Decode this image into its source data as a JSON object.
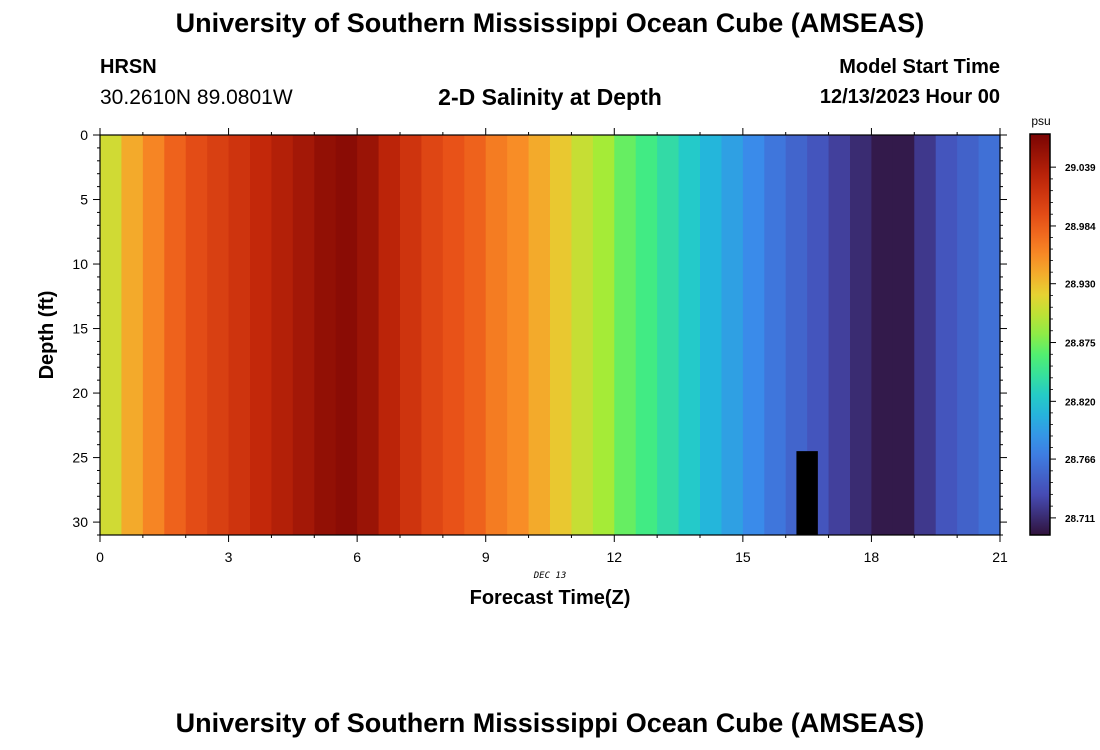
{
  "header": {
    "title": "University of Southern Mississippi Ocean Cube (AMSEAS)",
    "station": "HRSN",
    "coords": "30.2610N  89.0801W",
    "subtitle": "2-D Salinity at Depth",
    "model_start_label": "Model Start Time",
    "model_start_value": "12/13/2023 Hour 00"
  },
  "footer": {
    "title": "University of Southern Mississippi Ocean Cube (AMSEAS)"
  },
  "chart_data": {
    "type": "heatmap",
    "title": "2-D Salinity at Depth",
    "xlabel": "Forecast Time(Z)",
    "ylabel": "Depth (ft)",
    "date_label": "DEC 13",
    "xlim": [
      0,
      21
    ],
    "ylim": [
      31,
      0
    ],
    "x_ticks": [
      0,
      3,
      6,
      9,
      12,
      15,
      18,
      21
    ],
    "y_ticks": [
      0,
      5,
      10,
      15,
      20,
      25,
      30
    ],
    "colorbar": {
      "unit": "psu",
      "tick_labels": [
        "29.039",
        "28.984",
        "28.930",
        "28.875",
        "28.820",
        "28.766",
        "28.711"
      ],
      "tick_values": [
        29.039,
        28.984,
        28.93,
        28.875,
        28.82,
        28.766,
        28.711
      ],
      "min": 28.695,
      "max": 29.07
    },
    "bin_width_hours": 0.5,
    "time_bins_start": [
      0,
      0.5,
      1,
      1.5,
      2,
      2.5,
      3,
      3.5,
      4,
      4.5,
      5,
      5.5,
      6,
      6.5,
      7,
      7.5,
      8,
      8.5,
      9,
      9.5,
      10,
      10.5,
      11,
      11.5,
      12,
      12.5,
      13,
      13.5,
      14,
      14.5,
      15,
      15.5,
      16,
      16.5,
      17,
      17.5,
      18,
      18.5,
      19,
      19.5,
      20,
      20.5
    ],
    "salinity": [
      28.91,
      28.94,
      28.96,
      28.98,
      28.995,
      29.005,
      29.015,
      29.025,
      29.035,
      29.045,
      29.055,
      29.06,
      29.05,
      29.03,
      29.015,
      29.0,
      28.99,
      28.98,
      28.965,
      28.955,
      28.94,
      28.925,
      28.905,
      28.89,
      28.87,
      28.855,
      28.84,
      28.825,
      28.81,
      28.795,
      28.78,
      28.765,
      28.752,
      28.74,
      28.725,
      28.712,
      28.7,
      28.7,
      28.72,
      28.74,
      28.75,
      28.76
    ],
    "no_data": {
      "x": [
        16.25,
        16.75
      ],
      "depth": [
        24.5,
        31
      ]
    }
  }
}
